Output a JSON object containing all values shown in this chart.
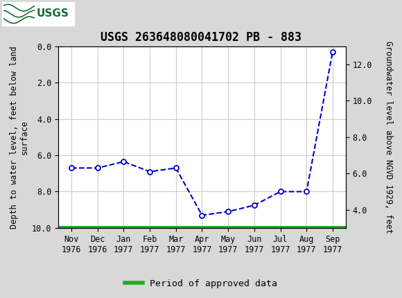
{
  "title": "USGS 263648080041702 PB - 883",
  "x_labels": [
    "Nov\n1976",
    "Dec\n1976",
    "Jan\n1977",
    "Feb\n1977",
    "Mar\n1977",
    "Apr\n1977",
    "May\n1977",
    "Jun\n1977",
    "Jul\n1977",
    "Aug\n1977",
    "Sep\n1977"
  ],
  "x_positions": [
    0,
    1,
    2,
    3,
    4,
    5,
    6,
    7,
    8,
    9,
    10
  ],
  "y_depth": [
    6.7,
    6.7,
    6.35,
    6.9,
    6.7,
    9.3,
    9.1,
    8.75,
    8.0,
    8.0,
    0.3
  ],
  "y_left_label": "Depth to water level, feet below land\nsurface",
  "y_right_label": "Groundwater level above NGVD 1929, feet",
  "ylim_left": [
    0.0,
    10.0
  ],
  "y_left_ticks": [
    0.0,
    2.0,
    4.0,
    6.0,
    8.0,
    10.0
  ],
  "y_right_ticks": [
    4.0,
    6.0,
    8.0,
    10.0,
    12.0
  ],
  "y_right_tick_labels": [
    "4.0",
    "6.0",
    "8.0",
    "10.0",
    "12.0"
  ],
  "line_color": "#0000CC",
  "marker_color": "#0000CC",
  "marker_face": "white",
  "line_width": 1.5,
  "marker_size": 5,
  "green_line_color": "#22aa22",
  "legend_label": "Period of approved data",
  "background_color": "#d8d8d8",
  "plot_bg_color": "#ffffff",
  "header_color": "#1a6b3c",
  "title_fontsize": 12,
  "axis_label_fontsize": 8.5,
  "tick_fontsize": 8.5,
  "legend_fontsize": 9.5
}
